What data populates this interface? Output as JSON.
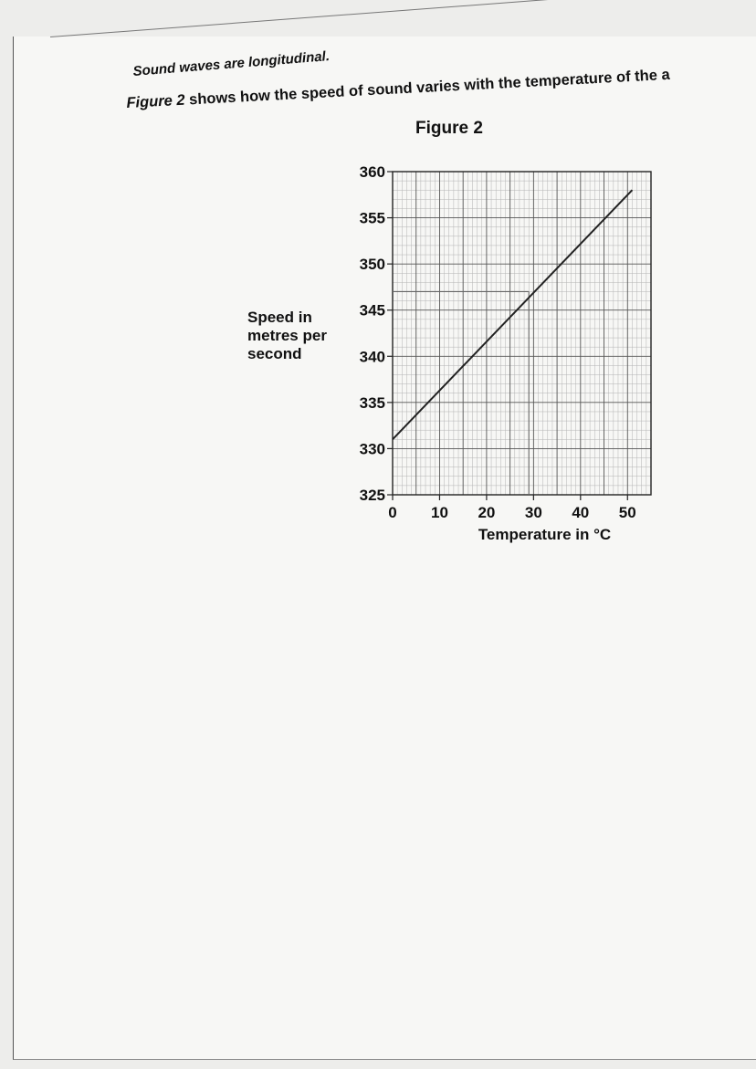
{
  "text": {
    "line1": "Sound waves are longitudinal.",
    "line2_ref": "Figure 2",
    "line2_rest": " shows how the speed of sound varies with the temperature of the a"
  },
  "chart_data": {
    "type": "line",
    "title": "Figure 2",
    "xlabel": "Temperature in °C",
    "ylabel": "Speed in metres per second",
    "xlim": [
      0,
      55
    ],
    "ylim": [
      325,
      360
    ],
    "x_ticks": [
      "0",
      "10",
      "20",
      "30",
      "40",
      "50"
    ],
    "y_ticks": [
      "325",
      "330",
      "335",
      "340",
      "345",
      "350",
      "355",
      "360"
    ],
    "grid": true,
    "series": [
      {
        "x": [
          0,
          51
        ],
        "y": [
          331,
          358
        ],
        "color": "#222222"
      }
    ],
    "annotations": {
      "reading_speed": 347,
      "reading_temperature": 29
    }
  }
}
